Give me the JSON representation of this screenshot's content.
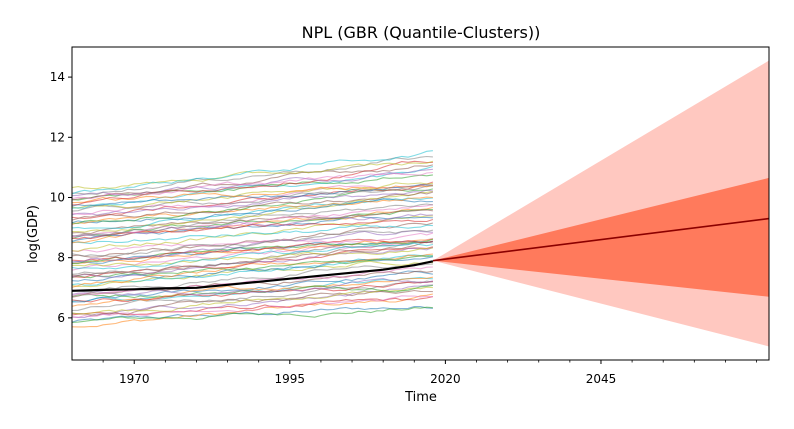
{
  "chart_data": {
    "type": "line",
    "title": "NPL (GBR (Quantile-Clusters))",
    "xlabel": "Time",
    "ylabel": "log(GDP)",
    "xlim": [
      1960,
      2072
    ],
    "ylim": [
      4.6,
      15.0
    ],
    "xticks": [
      1970,
      1995,
      2020,
      2045
    ],
    "xticks_minor": [
      1965,
      1975,
      1980,
      1985,
      1990,
      2000,
      2005,
      2010,
      2015,
      2025,
      2030,
      2035,
      2040,
      2050,
      2055,
      2060,
      2065,
      2070
    ],
    "yticks": [
      6,
      8,
      10,
      12,
      14
    ],
    "grid": false,
    "legend": "none",
    "history": {
      "x_start": 1960,
      "x_end": 2018,
      "reference_series": {
        "color": "#000000",
        "points": [
          [
            1960,
            6.9
          ],
          [
            1965,
            6.93
          ],
          [
            1970,
            6.95
          ],
          [
            1975,
            6.98
          ],
          [
            1980,
            7.0
          ],
          [
            1985,
            7.1
          ],
          [
            1990,
            7.2
          ],
          [
            1995,
            7.3
          ],
          [
            2000,
            7.4
          ],
          [
            2005,
            7.5
          ],
          [
            2010,
            7.6
          ],
          [
            2015,
            7.75
          ],
          [
            2018,
            7.88
          ]
        ]
      },
      "peer_series_count": 70,
      "peer_start_range": [
        5.8,
        10.3
      ],
      "peer_end_range": [
        6.5,
        11.3
      ]
    },
    "forecast": {
      "x_start": 2018,
      "x_end": 2072,
      "start_value": 7.9,
      "median_end": 9.3,
      "inner_band_end": [
        6.7,
        10.65
      ],
      "outer_band_end": [
        5.05,
        14.55
      ],
      "median_color": "#8b0000",
      "inner_band_color": "#ff7a5c",
      "outer_band_color": "#ffc8c0"
    }
  }
}
